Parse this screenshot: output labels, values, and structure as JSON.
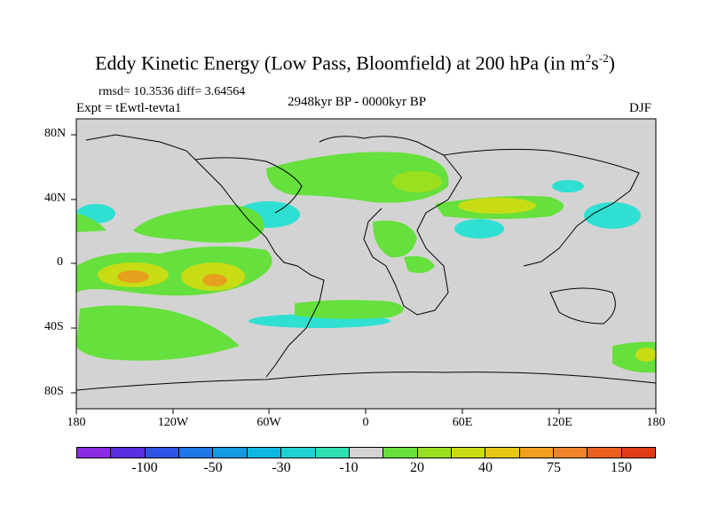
{
  "title": {
    "main": "Eddy Kinetic Energy (Low Pass, Bloomfield) at 200 hPa (in m",
    "sup1": "2",
    "mid": "s",
    "sup2": "-2",
    "end": ")"
  },
  "stats": {
    "rmsd_diff": "rmsd= 10.3536 diff= 3.64564",
    "expt": "Expt = tEwtl-tevta1",
    "period": "2948kyr BP - 0000kyr BP",
    "season": "DJF"
  },
  "axes": {
    "y_ticks": [
      "80N",
      "40N",
      "0",
      "40S",
      "80S"
    ],
    "x_ticks": [
      "180",
      "120W",
      "60W",
      "0",
      "60E",
      "120E",
      "180"
    ]
  },
  "colorbar": {
    "colors": [
      "#8a2be2",
      "#5a2ee0",
      "#2f55e8",
      "#1e78e6",
      "#1599e0",
      "#0fb8e0",
      "#1fd2d2",
      "#2fe0b4",
      "#d3d3d3",
      "#66e03c",
      "#9be01e",
      "#c8dc14",
      "#e6c814",
      "#f0a01e",
      "#f08228",
      "#eb5f1e",
      "#e03c14"
    ],
    "labels": [
      "-100",
      "-50",
      "-30",
      "-10",
      "20",
      "40",
      "75",
      "150"
    ]
  },
  "map_fields": {
    "colors": {
      "land_sea_bg": "#d3d3d3",
      "green": "#66e03c",
      "lightgreen": "#9be01e",
      "yellow": "#c8dc14",
      "orange": "#e6a01e",
      "cyan": "#2fe0d2"
    }
  }
}
